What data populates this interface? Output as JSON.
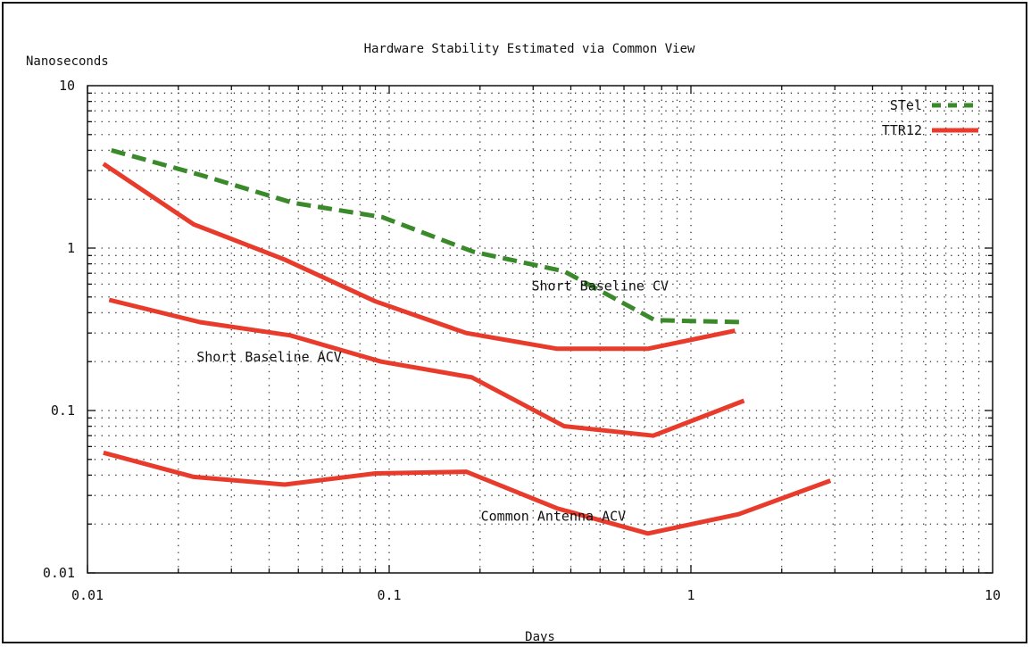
{
  "chart_data": {
    "type": "line",
    "title": "Hardware Stability Estimated via Common View",
    "ylabel": "Nanoseconds",
    "xlabel": "Days",
    "x_scale": "log",
    "y_scale": "log",
    "xlim": [
      0.01,
      10
    ],
    "ylim": [
      0.01,
      10
    ],
    "x_ticks": [
      0.01,
      0.1,
      1,
      10
    ],
    "x_tick_labels": [
      "0.01",
      "0.1",
      "1",
      "10"
    ],
    "y_ticks": [
      10,
      1,
      0.1,
      0.01
    ],
    "y_tick_labels": [
      "10",
      "1",
      "0.1",
      "0.01"
    ],
    "grid": true,
    "legend_position": "top-right",
    "legend": [
      {
        "name": "STel",
        "color": "#3a8a2c",
        "style": "dashed"
      },
      {
        "name": "TTR12",
        "color": "#e83b2c",
        "style": "solid"
      }
    ],
    "series": [
      {
        "name": "STel",
        "legend": "STel",
        "color": "#3a8a2c",
        "style": "dashed",
        "x": [
          0.012,
          0.024,
          0.048,
          0.095,
          0.19,
          0.38,
          0.76,
          1.5
        ],
        "y": [
          4.0,
          2.8,
          1.9,
          1.55,
          0.95,
          0.72,
          0.36,
          0.35
        ]
      },
      {
        "name": "TTR12 Short Baseline CV",
        "legend": "TTR12",
        "color": "#e83b2c",
        "style": "solid",
        "x": [
          0.0113,
          0.0225,
          0.045,
          0.09,
          0.18,
          0.36,
          0.72,
          1.4
        ],
        "y": [
          3.3,
          1.4,
          0.85,
          0.47,
          0.3,
          0.24,
          0.24,
          0.31
        ]
      },
      {
        "name": "TTR12 Short Baseline ACV",
        "legend": "TTR12",
        "color": "#e83b2c",
        "style": "solid",
        "x": [
          0.0118,
          0.0236,
          0.047,
          0.094,
          0.188,
          0.38,
          0.75,
          1.5
        ],
        "y": [
          0.48,
          0.35,
          0.29,
          0.2,
          0.16,
          0.08,
          0.07,
          0.115
        ]
      },
      {
        "name": "TTR12 Common Antenna ACV",
        "legend": "TTR12",
        "color": "#e83b2c",
        "style": "solid",
        "x": [
          0.0113,
          0.0225,
          0.045,
          0.09,
          0.18,
          0.36,
          0.72,
          1.44,
          2.9
        ],
        "y": [
          0.055,
          0.039,
          0.035,
          0.041,
          0.042,
          0.025,
          0.0175,
          0.023,
          0.037
        ]
      }
    ],
    "annotations": [
      {
        "text": "Short Baseline CV",
        "x": 0.5,
        "y": 0.55
      },
      {
        "text": "Short Baseline ACV",
        "x": 0.04,
        "y": 0.2
      },
      {
        "text": "Common Antenna ACV",
        "x": 0.35,
        "y": 0.021
      }
    ]
  }
}
